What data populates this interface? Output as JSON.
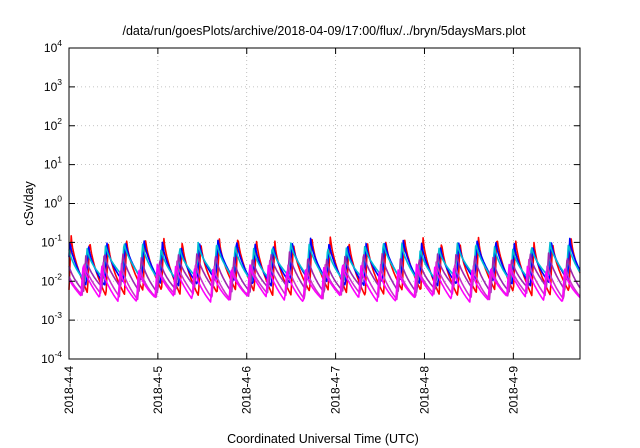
{
  "chart_data": {
    "type": "line",
    "title": "/data/run/goesPlots/archive/2018-04-09/17:00/flux/../bryn/5daysMars.plot",
    "xlabel": "Coordinated Universal Time (UTC)",
    "ylabel": "cSv/day",
    "yscale": "log",
    "ylim": [
      0.0001,
      10000
    ],
    "xlim": [
      "2018-04-04",
      "2018-04-09T18:00"
    ],
    "grid": true,
    "y_ticks": [
      {
        "base": "10",
        "exp": "-4"
      },
      {
        "base": "10",
        "exp": "-3"
      },
      {
        "base": "10",
        "exp": "-2"
      },
      {
        "base": "10",
        "exp": "-1"
      },
      {
        "base": "10",
        "exp": "0"
      },
      {
        "base": "10",
        "exp": "1"
      },
      {
        "base": "10",
        "exp": "2"
      },
      {
        "base": "10",
        "exp": "3"
      },
      {
        "base": "10",
        "exp": "4"
      }
    ],
    "x_ticks": [
      "2018-4-4",
      "2018-4-5",
      "2018-4-6",
      "2018-4-7",
      "2018-4-8",
      "2018-4-9"
    ],
    "pattern": {
      "period_hours": 5,
      "peak_value": 0.1,
      "trough_value": 0.006
    },
    "series": [
      {
        "color": "#ff0000",
        "peak": 0.13,
        "trough": 0.005
      },
      {
        "color": "#0000ff",
        "peak": 0.11,
        "trough": 0.009
      },
      {
        "color": "#00bcd4",
        "peak": 0.09,
        "trough": 0.012
      },
      {
        "color": "#9c27b0",
        "peak": 0.05,
        "trough": 0.006
      },
      {
        "color": "#cc33cc",
        "peak": 0.03,
        "trough": 0.004
      },
      {
        "color": "#ff00ff",
        "peak": 0.025,
        "trough": 0.0035
      }
    ]
  }
}
